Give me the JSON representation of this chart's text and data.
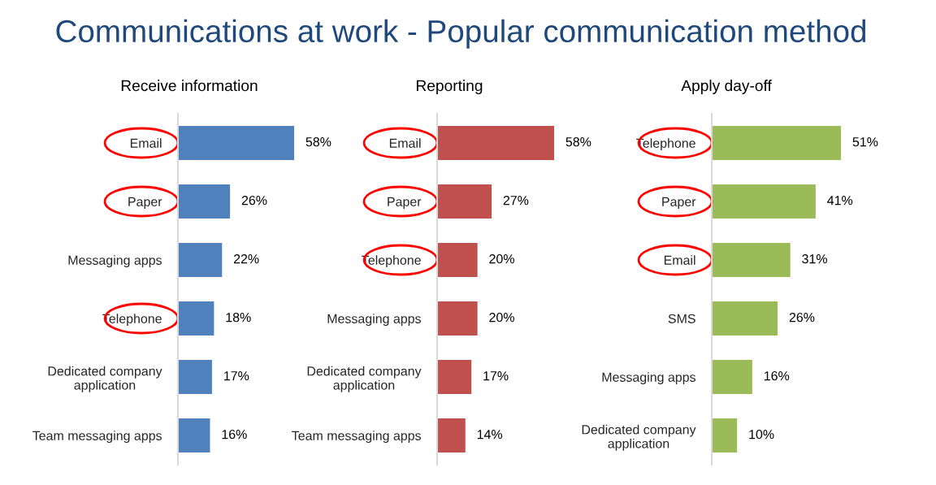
{
  "chart_data": [
    {
      "type": "other",
      "title": "Communications at work - Popular communication method"
    },
    {
      "type": "bar",
      "orientation": "horizontal",
      "title": "Receive information",
      "categories": [
        "Email",
        "Paper",
        "Messaging apps",
        "Telephone",
        "Dedicated company\napplication",
        "Team messaging apps"
      ],
      "values": [
        58,
        26,
        22,
        18,
        17,
        16
      ],
      "value_labels": [
        "58%",
        "26%",
        "22%",
        "18%",
        "17%",
        "16%"
      ],
      "color": "#4f81bd",
      "tick_labels": "y"
    },
    {
      "type": "bar",
      "orientation": "horizontal",
      "title": "Reporting",
      "categories": [
        "Email",
        "Paper",
        "Telephone",
        "Messaging apps",
        "Dedicated company\napplication",
        "Team messaging apps"
      ],
      "values": [
        58,
        27,
        20,
        20,
        17,
        14
      ],
      "value_labels": [
        "58%",
        "27%",
        "20%",
        "20%",
        "17%",
        "14%"
      ],
      "color": "#c0504d",
      "tick_labels": "y"
    },
    {
      "type": "bar",
      "orientation": "horizontal",
      "title": "Apply day-off",
      "categories": [
        "Telephone",
        "Paper",
        "Email",
        "SMS",
        "Messaging apps",
        "Dedicated company\napplication"
      ],
      "values": [
        51,
        41,
        31,
        26,
        16,
        10
      ],
      "value_labels": [
        "51%",
        "41%",
        "31%",
        "26%",
        "16%",
        "10%"
      ],
      "color": "#9bbb59",
      "tick_labels": "y"
    }
  ]
}
